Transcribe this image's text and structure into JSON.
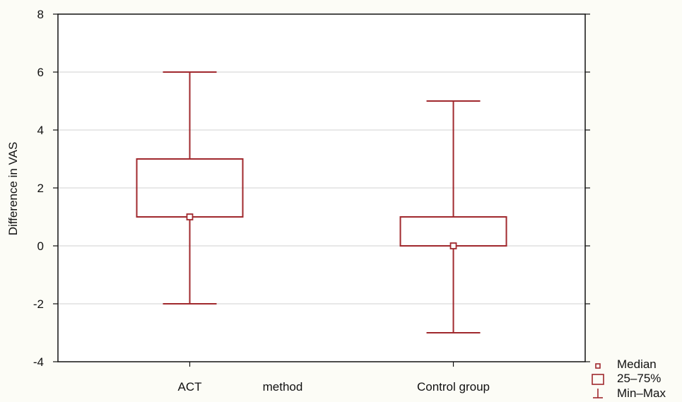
{
  "chart_data": {
    "type": "boxplot",
    "ylabel": "Difference in VAS",
    "xlabel": "method",
    "ylim": [
      -4,
      8
    ],
    "yticks": [
      -4,
      -2,
      0,
      2,
      4,
      6,
      8
    ],
    "grid": true,
    "categories": [
      "ACT",
      "Control group"
    ],
    "boxes": [
      {
        "category": "ACT",
        "min": -2,
        "q1": 1,
        "median": 1,
        "q3": 3,
        "max": 6
      },
      {
        "category": "Control group",
        "min": -3,
        "q1": 0,
        "median": 0,
        "q3": 1,
        "max": 5
      }
    ],
    "legend": {
      "position": "bottom-right",
      "items": [
        {
          "label": "Median",
          "symbol": "small-square"
        },
        {
          "label": "25–75%",
          "symbol": "box"
        },
        {
          "label": "Min–Max",
          "symbol": "whisker"
        }
      ]
    },
    "colors": {
      "box": "#a0282d",
      "grid": "#d9d9d9",
      "axis": "#111111",
      "plot_background": "#ffffff",
      "page_background": "#fcfcf6"
    }
  }
}
